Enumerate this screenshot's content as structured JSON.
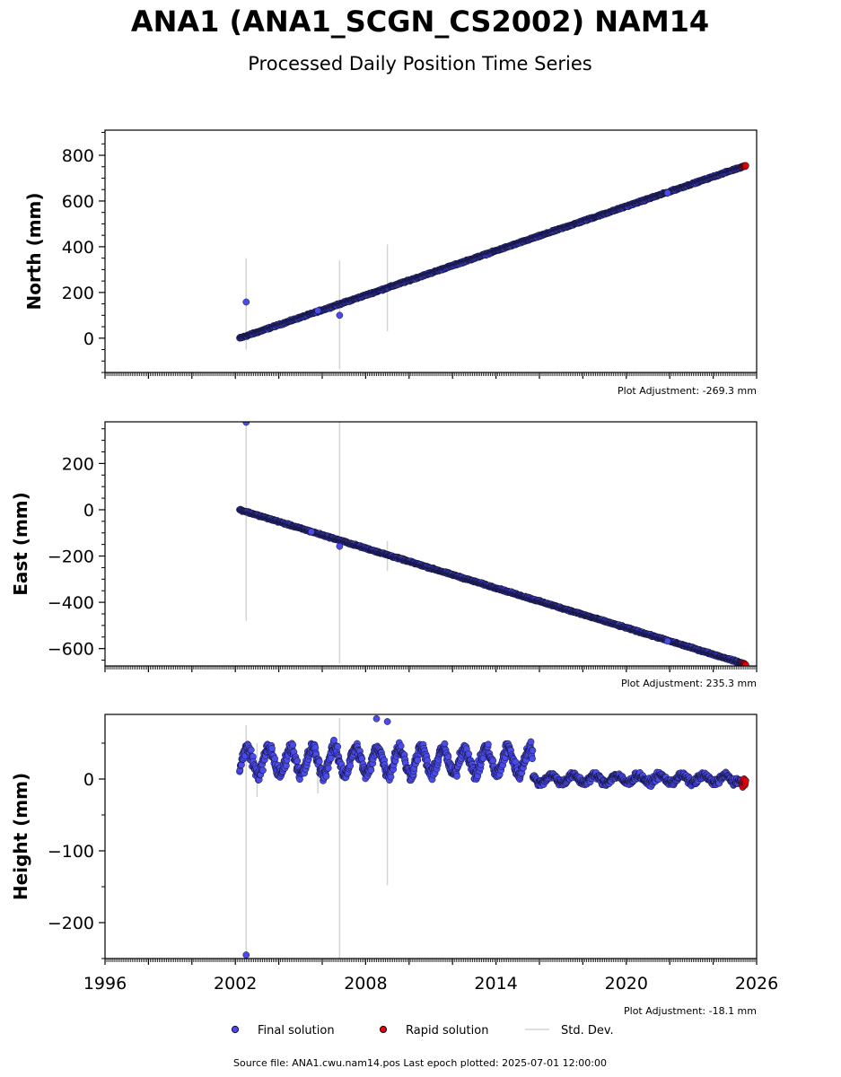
{
  "title": "ANA1 (ANA1_SCGN_CS2002) NAM14",
  "subtitle": "Processed Daily Position Time Series",
  "footer": "Source file: ANA1.cwu.nam14.pos  Last epoch plotted: 2025-07-01 12:00:00",
  "legend": {
    "final": "Final solution",
    "rapid": "Rapid solution",
    "std": "Std. Dev."
  },
  "colors": {
    "final": "#4b4bea",
    "rapid": "#e00000",
    "std": "#d3d3d3",
    "edge": "#111133"
  },
  "chart_data": [
    {
      "type": "scatter",
      "ylabel": "North (mm)",
      "adjustment": "Plot Adjustment: -269.3 mm",
      "xlim": [
        1996,
        2026
      ],
      "ylim": [
        -150,
        910
      ],
      "yticks": [
        0,
        200,
        400,
        600,
        800
      ],
      "yminor_step": 50,
      "xticklabels": [],
      "trend": {
        "x0": 2002.2,
        "y0": 0,
        "x1": 2025.5,
        "y1": 755
      },
      "final_segments": [
        [
          2002.2,
          2021.9
        ],
        [
          2022.0,
          2025.3
        ]
      ],
      "rapid_range": [
        2025.3,
        2025.5
      ],
      "noise": 3,
      "outliers": [
        [
          2002.5,
          158
        ],
        [
          2006.8,
          100
        ],
        [
          2005.8,
          120
        ],
        [
          2021.9,
          635
        ]
      ],
      "std_bars": [
        [
          2002.5,
          -50,
          350
        ],
        [
          2006.8,
          -135,
          340
        ],
        [
          2009.0,
          30,
          410
        ]
      ]
    },
    {
      "type": "scatter",
      "ylabel": "East (mm)",
      "adjustment": "Plot Adjustment: 235.3 mm",
      "xlim": [
        1996,
        2026
      ],
      "ylim": [
        -675,
        380
      ],
      "yticks": [
        -600,
        -400,
        -200,
        0,
        200
      ],
      "yminor_step": 50,
      "xticklabels": [],
      "trend": {
        "x0": 2002.2,
        "y0": 0,
        "x1": 2025.5,
        "y1": -668
      },
      "final_segments": [
        [
          2002.2,
          2021.9
        ],
        [
          2022.0,
          2025.3
        ]
      ],
      "rapid_range": [
        2025.3,
        2025.5
      ],
      "noise": 3,
      "outliers": [
        [
          2002.5,
          378
        ],
        [
          2006.8,
          -158
        ],
        [
          2005.5,
          -95
        ],
        [
          2021.9,
          -568
        ]
      ],
      "std_bars": [
        [
          2002.5,
          -480,
          370
        ],
        [
          2006.8,
          -665,
          380
        ],
        [
          2009.0,
          -265,
          -135
        ]
      ]
    },
    {
      "type": "scatter",
      "ylabel": "Height (mm)",
      "adjustment": "Plot Adjustment: -18.1 mm",
      "xlim": [
        1996,
        2026
      ],
      "ylim": [
        -250,
        90
      ],
      "yticks": [
        -200,
        -100,
        0
      ],
      "yminor_step": 50,
      "xticks": [
        1996,
        2002,
        2008,
        2014,
        2020,
        2026
      ],
      "xticklabels": [
        "1996",
        "2002",
        "2008",
        "2014",
        "2020",
        "2026"
      ],
      "seasonal": [
        {
          "x0": 2002.2,
          "x1": 2015.7,
          "base": 25,
          "amp": 18,
          "noise": 8
        },
        {
          "x0": 2015.7,
          "x1": 2025.3,
          "base": 0,
          "amp": 5,
          "noise": 4
        }
      ],
      "rapid_range": [
        2025.3,
        2025.5
      ],
      "rapid_y": -5,
      "outliers": [
        [
          2002.5,
          -245
        ],
        [
          2009.0,
          80
        ],
        [
          2008.5,
          84
        ]
      ],
      "std_bars": [
        [
          2002.5,
          -250,
          75
        ],
        [
          2006.8,
          -250,
          85
        ],
        [
          2009.0,
          -148,
          30
        ],
        [
          2003.0,
          -25,
          50
        ],
        [
          2005.8,
          -20,
          45
        ]
      ]
    }
  ]
}
